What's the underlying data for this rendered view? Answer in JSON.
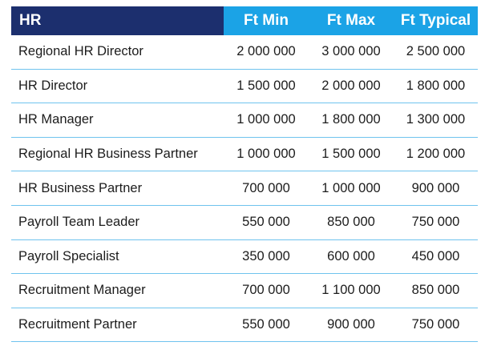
{
  "table": {
    "headers": [
      "HR",
      "Ft Min",
      "Ft Max",
      "Ft Typical"
    ],
    "rows": [
      [
        "Regional HR Director",
        "2 000 000",
        "3 000 000",
        "2 500 000"
      ],
      [
        "HR Director",
        "1 500 000",
        "2 000 000",
        "1 800 000"
      ],
      [
        "HR Manager",
        "1 000 000",
        "1 800 000",
        "1 300 000"
      ],
      [
        "Regional HR Business Partner",
        "1 000 000",
        "1 500 000",
        "1 200 000"
      ],
      [
        "HR Business Partner",
        "700 000",
        "1 000 000",
        "900 000"
      ],
      [
        "Payroll Team Leader",
        "550 000",
        "850 000",
        "750 000"
      ],
      [
        "Payroll Specialist",
        "350 000",
        "600 000",
        "450 000"
      ],
      [
        "Recruitment Manager",
        "700 000",
        "1 100 000",
        "850 000"
      ],
      [
        "Recruitment Partner",
        "550 000",
        "900 000",
        "750 000"
      ]
    ]
  },
  "colors": {
    "header_dark": "#1c2f6e",
    "header_accent": "#1ba3e6",
    "row_divider": "#6fc3ee"
  }
}
